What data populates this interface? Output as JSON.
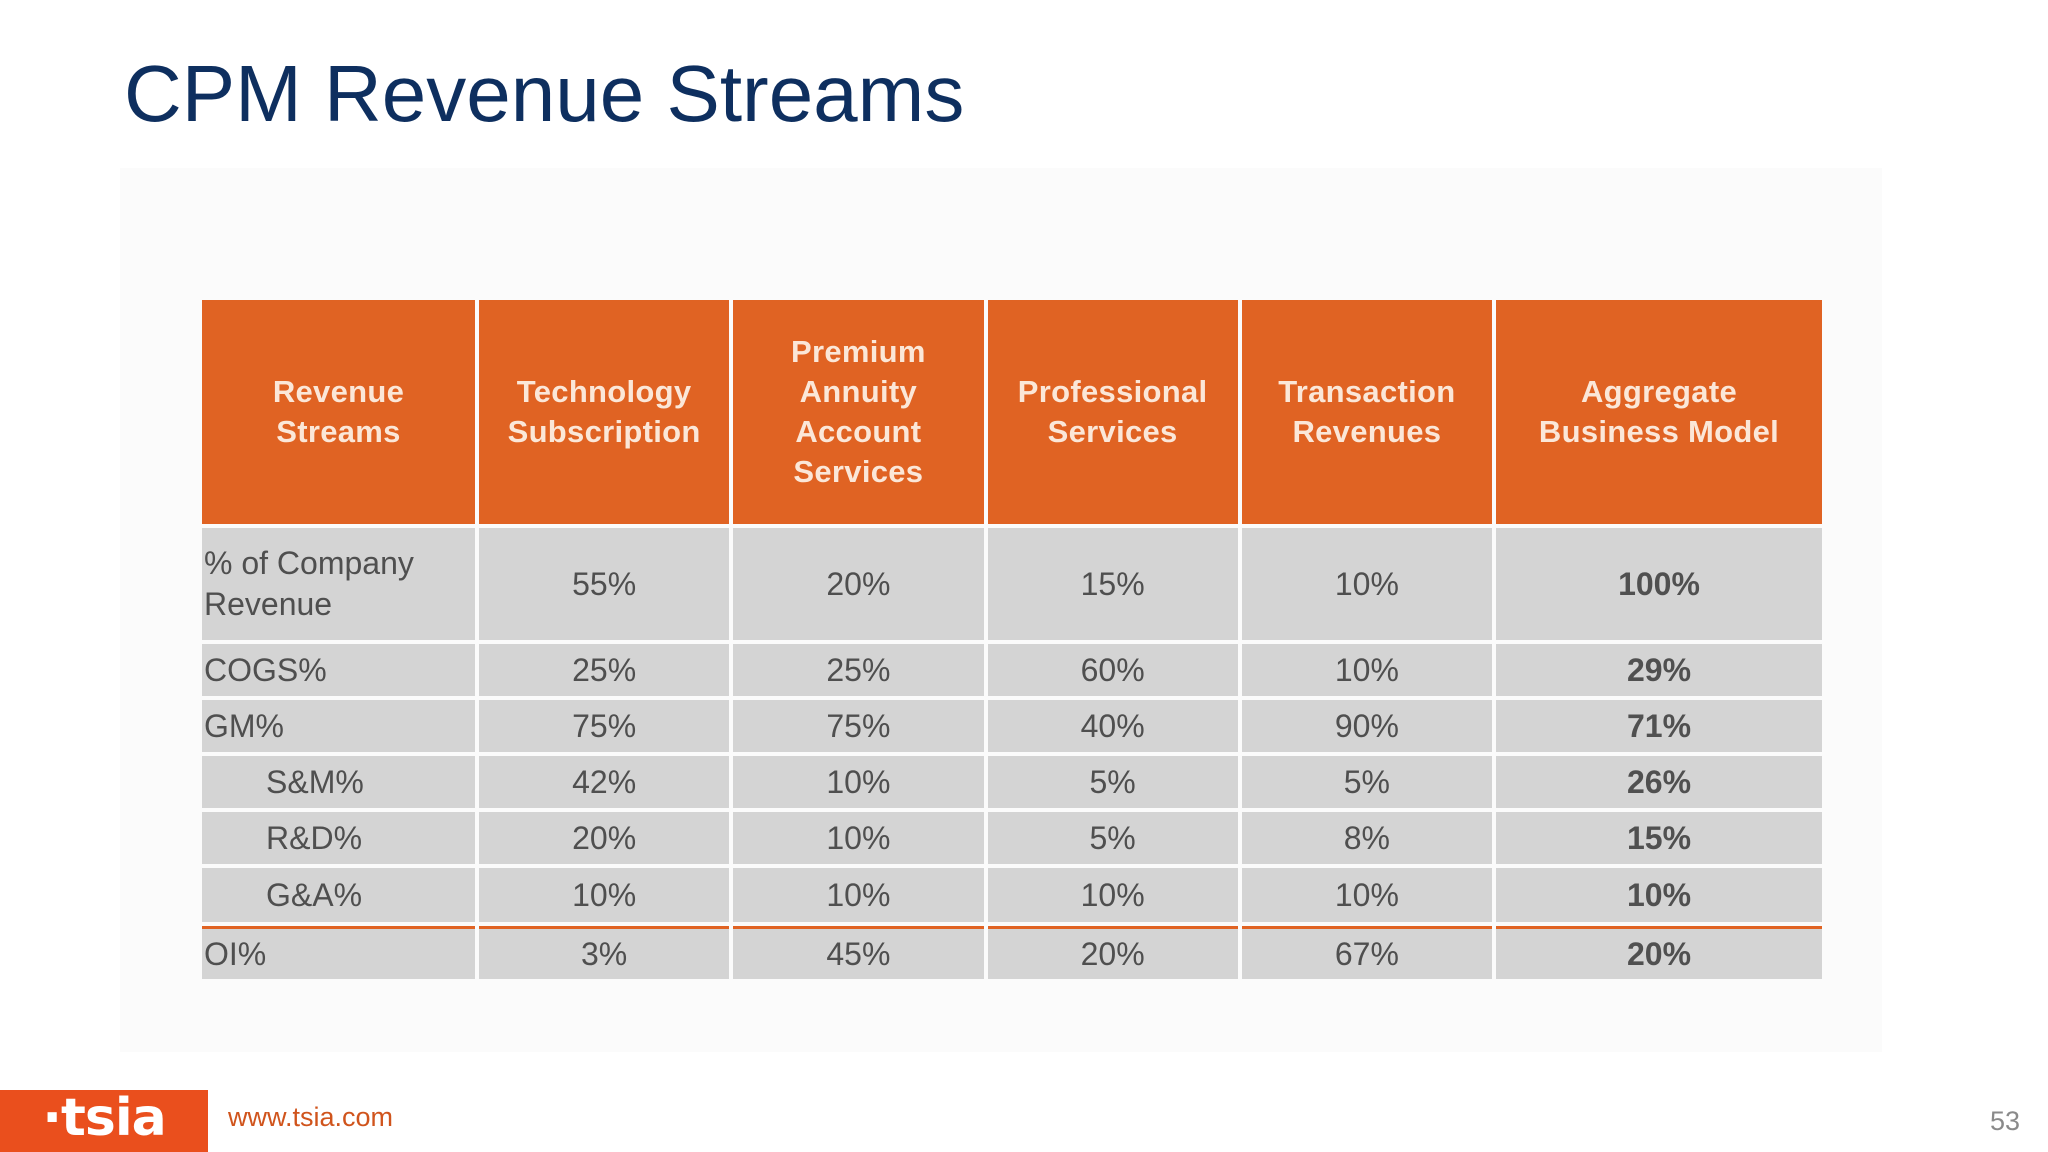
{
  "title": "CPM Revenue Streams",
  "table": {
    "headers": [
      "Revenue\nStreams",
      "Technology\nSubscription",
      "Premium\nAnnuity\nAccount\nServices",
      "Professional\nServices",
      "Transaction\nRevenues",
      "Aggregate\nBusiness Model"
    ],
    "rows": [
      {
        "label": "% of Company Revenue",
        "values": [
          "55%",
          "20%",
          "15%",
          "10%"
        ],
        "aggregate": "100%"
      },
      {
        "label": "COGS%",
        "values": [
          "25%",
          "25%",
          "60%",
          "10%"
        ],
        "aggregate": "29%"
      },
      {
        "label": "GM%",
        "values": [
          "75%",
          "75%",
          "40%",
          "90%"
        ],
        "aggregate": "71%"
      },
      {
        "label": "S&M%",
        "values": [
          "42%",
          "10%",
          "5%",
          "5%"
        ],
        "aggregate": "26%"
      },
      {
        "label": "R&D%",
        "values": [
          "20%",
          "10%",
          "5%",
          "8%"
        ],
        "aggregate": "15%"
      },
      {
        "label": "G&A%",
        "values": [
          "10%",
          "10%",
          "10%",
          "10%"
        ],
        "aggregate": "10%"
      },
      {
        "label": "OI%",
        "values": [
          "3%",
          "45%",
          "20%",
          "67%"
        ],
        "aggregate": "20%"
      }
    ]
  },
  "footer": {
    "logo_text": "·tsia",
    "url": "www.tsia.com",
    "page_number": "53"
  },
  "colors": {
    "header_bg": "#e06323",
    "cell_bg": "#d4d4d4",
    "title": "#0e2f5f",
    "logo_bg": "#ea4f1d"
  }
}
